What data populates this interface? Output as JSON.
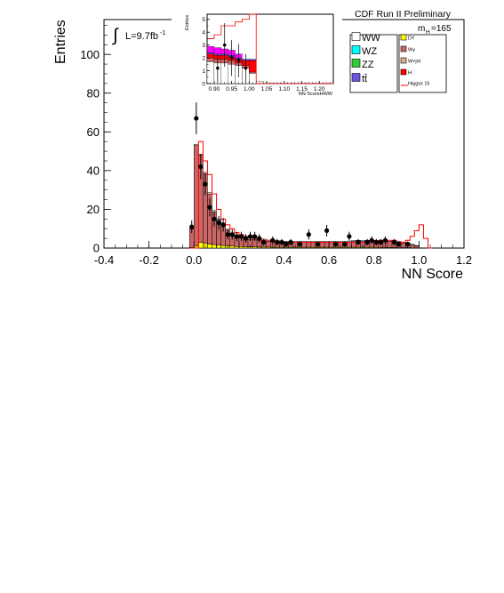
{
  "header": {
    "title": "CDF Run II Preliminary",
    "mass_label": "m",
    "mass_sub": "H",
    "mass_value": "=165"
  },
  "lumi": {
    "integral": "∫",
    "label": "L=9.7fb",
    "sup": "-1"
  },
  "legend": {
    "items": [
      {
        "label": "WW",
        "color": "#ffffff"
      },
      {
        "label": "WZ",
        "color": "#00ffff"
      },
      {
        "label": "ZZ",
        "color": "#33cc33"
      },
      {
        "label": "tt̄",
        "color": "#6655dd"
      },
      {
        "label": "DY",
        "color": "#ffff00"
      },
      {
        "label": "Wγ",
        "color": "#cc6666"
      },
      {
        "label": "W+jet",
        "color": "#d9b38c"
      },
      {
        "label": "H",
        "color": "#ff0000"
      },
      {
        "label": "Higgsx 15",
        "color": "#ff0000"
      }
    ]
  },
  "chart_data": [
    {
      "type": "bar",
      "panel": "main",
      "xlabel": "NN Score",
      "ylabel": "Entries",
      "xlim": [
        -0.4,
        1.2
      ],
      "ylim": [
        0,
        118
      ],
      "x_ticks": [
        "-0.4",
        "-0.2",
        "0.0",
        "0.2",
        "0.4",
        "0.6",
        "0.8",
        "1.0",
        "1.2"
      ],
      "y_ticks": [
        "0",
        "20",
        "40",
        "60",
        "80",
        "100"
      ],
      "bin_width": 0.02,
      "bin_centers": [
        -0.01,
        0.01,
        0.03,
        0.05,
        0.07,
        0.09,
        0.11,
        0.13,
        0.15,
        0.17,
        0.19,
        0.21,
        0.23,
        0.25,
        0.27,
        0.29,
        0.31,
        0.33,
        0.35,
        0.37,
        0.39,
        0.41,
        0.43,
        0.45,
        0.47,
        0.49,
        0.51,
        0.53,
        0.55,
        0.57,
        0.59,
        0.61,
        0.63,
        0.65,
        0.67,
        0.69,
        0.71,
        0.73,
        0.75,
        0.77,
        0.79,
        0.81,
        0.83,
        0.85,
        0.87,
        0.89,
        0.91,
        0.93,
        0.95,
        0.97,
        0.99,
        1.01,
        1.03,
        1.05
      ],
      "series": [
        {
          "name": "DY",
          "color": "#ffff00",
          "values": [
            0.3,
            1.0,
            3.0,
            2.5,
            2.0,
            1.8,
            1.5,
            1.3,
            1.2,
            1.0,
            0.8,
            0.8,
            0.7,
            0.6,
            0.6,
            0.5,
            0.5,
            0.5,
            0.4,
            0.4,
            0.4,
            0.4,
            0.4,
            0.4,
            0.4,
            0.4,
            0.4,
            0.4,
            0.4,
            0.4,
            0.4,
            0.4,
            0.4,
            0.4,
            0.4,
            0.4,
            0.4,
            0.4,
            0.4,
            0.4,
            0.4,
            0.4,
            0.3,
            0.3,
            0.3,
            0.3,
            0.2,
            0.2,
            0.2,
            0.1,
            0.1,
            0,
            0,
            0
          ]
        },
        {
          "name": "Wγ",
          "color": "#cc6666",
          "values": [
            9.5,
            52,
            45,
            36,
            26,
            17,
            13,
            11,
            8,
            6,
            4.5,
            5,
            4.5,
            4,
            4,
            3.5,
            3.5,
            3,
            3,
            2.8,
            2.5,
            2.5,
            2.5,
            2.5,
            2.5,
            2.5,
            2.5,
            2.5,
            2.5,
            2.5,
            2.5,
            2.5,
            2.5,
            2.5,
            2.5,
            2.5,
            3,
            3,
            3,
            3,
            3,
            3,
            3.2,
            3.2,
            3.2,
            3,
            2.8,
            2.5,
            2.2,
            1.5,
            1.0,
            0,
            0,
            0
          ]
        },
        {
          "name": "WW",
          "color": "#ffffff",
          "values": [
            0.3,
            0.5,
            0.5,
            0.6,
            0.6,
            0.6,
            0.6,
            0.6,
            0.6,
            0.7,
            0.7,
            0.7,
            0.7,
            0.6,
            0.6,
            0.6,
            0.6,
            0.6,
            0.6,
            0.6,
            0.6,
            0.6,
            0.6,
            0.6,
            0.6,
            0.6,
            0.6,
            0.6,
            0.6,
            0.6,
            0.6,
            0.6,
            0.6,
            0.6,
            0.6,
            0.6,
            0.6,
            0.6,
            0.6,
            0.6,
            0.6,
            0.6,
            0.5,
            0.5,
            0.5,
            0.5,
            0.5,
            0.4,
            0.3,
            0.3,
            0.2,
            0,
            0,
            0
          ]
        }
      ],
      "higgs_x15": [
        0,
        0,
        55,
        45,
        38,
        28,
        20,
        15,
        12,
        10,
        8,
        7,
        6,
        6,
        5,
        5,
        4,
        4,
        4,
        3,
        3,
        3,
        3,
        3,
        3,
        3,
        3,
        3,
        3,
        3,
        3,
        3,
        3,
        3,
        3,
        3,
        3,
        3,
        3,
        3,
        3,
        3,
        4,
        4,
        4,
        4,
        3,
        3,
        4,
        6,
        9,
        12,
        5,
        0
      ],
      "data": [
        {
          "x": -0.01,
          "y": 11,
          "err": 3.3
        },
        {
          "x": 0.01,
          "y": 67,
          "err": 8.2
        },
        {
          "x": 0.03,
          "y": 42,
          "err": 6.5
        },
        {
          "x": 0.05,
          "y": 33,
          "err": 5.7
        },
        {
          "x": 0.07,
          "y": 21,
          "err": 4.6
        },
        {
          "x": 0.09,
          "y": 15,
          "err": 3.9
        },
        {
          "x": 0.11,
          "y": 13,
          "err": 3.6
        },
        {
          "x": 0.13,
          "y": 12,
          "err": 3.5
        },
        {
          "x": 0.15,
          "y": 7,
          "err": 2.6
        },
        {
          "x": 0.17,
          "y": 7,
          "err": 2.6
        },
        {
          "x": 0.19,
          "y": 6,
          "err": 2.4
        },
        {
          "x": 0.21,
          "y": 6,
          "err": 2.4
        },
        {
          "x": 0.23,
          "y": 5,
          "err": 2.2
        },
        {
          "x": 0.25,
          "y": 6,
          "err": 2.4
        },
        {
          "x": 0.27,
          "y": 6,
          "err": 2.4
        },
        {
          "x": 0.29,
          "y": 5,
          "err": 2.2
        },
        {
          "x": 0.31,
          "y": 3,
          "err": 1.7
        },
        {
          "x": 0.35,
          "y": 4,
          "err": 2.0
        },
        {
          "x": 0.37,
          "y": 3,
          "err": 1.7
        },
        {
          "x": 0.39,
          "y": 3,
          "err": 1.7
        },
        {
          "x": 0.41,
          "y": 2,
          "err": 1.4
        },
        {
          "x": 0.43,
          "y": 3,
          "err": 1.7
        },
        {
          "x": 0.47,
          "y": 2,
          "err": 1.4
        },
        {
          "x": 0.51,
          "y": 7,
          "err": 2.6
        },
        {
          "x": 0.55,
          "y": 2,
          "err": 1.4
        },
        {
          "x": 0.59,
          "y": 9,
          "err": 3.0
        },
        {
          "x": 0.63,
          "y": 2,
          "err": 1.4
        },
        {
          "x": 0.67,
          "y": 2,
          "err": 1.4
        },
        {
          "x": 0.69,
          "y": 6,
          "err": 2.4
        },
        {
          "x": 0.73,
          "y": 3,
          "err": 1.7
        },
        {
          "x": 0.77,
          "y": 3,
          "err": 1.7
        },
        {
          "x": 0.79,
          "y": 4,
          "err": 2.0
        },
        {
          "x": 0.81,
          "y": 3,
          "err": 1.7
        },
        {
          "x": 0.83,
          "y": 3,
          "err": 1.7
        },
        {
          "x": 0.85,
          "y": 4,
          "err": 2.0
        },
        {
          "x": 0.89,
          "y": 3,
          "err": 1.7
        },
        {
          "x": 0.91,
          "y": 2,
          "err": 1.4
        },
        {
          "x": 0.95,
          "y": 2,
          "err": 1.4
        }
      ]
    },
    {
      "type": "bar",
      "panel": "inset",
      "xlabel": "NN ScoreHWW",
      "ylabel": "Entries",
      "xlim": [
        0.88,
        1.24
      ],
      "ylim": [
        0,
        5.4
      ],
      "x_ticks": [
        "0.90",
        "0.95",
        "1.00",
        "1.05",
        "1.10",
        "1.15",
        "1.20"
      ],
      "y_ticks": [
        "0",
        "1",
        "2",
        "3",
        "4",
        "5"
      ],
      "bin_width": 0.02,
      "bin_centers": [
        0.89,
        0.91,
        0.93,
        0.95,
        0.97,
        0.99,
        1.01,
        1.03,
        1.05,
        1.07,
        1.09,
        1.11,
        1.13,
        1.15,
        1.17,
        1.19,
        1.21,
        1.23
      ],
      "series": [
        {
          "name": "WW",
          "color": "#ffffff",
          "values": [
            1.7,
            1.6,
            1.6,
            1.5,
            1.4,
            1.2,
            0.8,
            0.2,
            0,
            0,
            0,
            0,
            0,
            0,
            0,
            0,
            0,
            0
          ]
        },
        {
          "name": "Wγ",
          "color": "#cc6666",
          "values": [
            0.3,
            0.3,
            0.3,
            0.3,
            0.2,
            0.2,
            0.1,
            0,
            0,
            0,
            0,
            0,
            0,
            0,
            0,
            0,
            0,
            0
          ]
        },
        {
          "name": "H",
          "color": "#ff0000",
          "values": [
            0.3,
            0.3,
            0.3,
            0.3,
            0.3,
            0.4,
            0.9,
            0,
            0,
            0,
            0,
            0,
            0,
            0,
            0,
            0,
            0,
            0
          ]
        },
        {
          "name": "tt̄",
          "color": "#6655dd",
          "values": [
            0.1,
            0.1,
            0.1,
            0.1,
            0.1,
            0.1,
            0.1,
            0,
            0,
            0,
            0,
            0,
            0,
            0,
            0,
            0,
            0,
            0
          ]
        },
        {
          "name": "Higgsx 15",
          "color": "#ff00ff",
          "values": [
            0.5,
            0.5,
            0.4,
            0.4,
            0.3,
            0,
            0,
            0,
            0,
            0,
            0,
            0,
            0,
            0,
            0,
            0,
            0,
            0
          ]
        }
      ],
      "higgs_x15": [
        3.5,
        3.8,
        4.5,
        4.5,
        4.8,
        5.0,
        5.4,
        0,
        0,
        0,
        0,
        0,
        0,
        0,
        0,
        0,
        0,
        0
      ],
      "data": [
        {
          "x": 0.91,
          "y": 1.2,
          "err": 1.1
        },
        {
          "x": 0.93,
          "y": 3.0,
          "err": 1.7
        },
        {
          "x": 0.95,
          "y": 2.0,
          "err": 1.4
        },
        {
          "x": 0.97,
          "y": 1.8,
          "err": 1.3
        },
        {
          "x": 0.99,
          "y": 1.2,
          "err": 1.1
        }
      ]
    }
  ]
}
